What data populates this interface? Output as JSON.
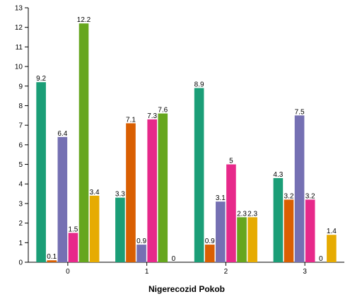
{
  "chart_data": {
    "type": "bar",
    "xlabel": "Nigerecozid Pokob",
    "ylabel": "",
    "ylim": [
      0,
      13
    ],
    "yticks": [
      0,
      1,
      2,
      3,
      4,
      5,
      6,
      7,
      8,
      9,
      10,
      11,
      12,
      13
    ],
    "categories": [
      "0",
      "1",
      "2",
      "3"
    ],
    "grid": false,
    "legend": "none",
    "series": [
      {
        "color": "#1b9e77",
        "values": [
          9.2,
          3.3,
          8.9,
          4.3
        ]
      },
      {
        "color": "#d95f02",
        "values": [
          0.1,
          7.1,
          0.9,
          3.2
        ]
      },
      {
        "color": "#7570b3",
        "values": [
          6.4,
          0.9,
          3.1,
          7.5
        ]
      },
      {
        "color": "#e7298a",
        "values": [
          1.5,
          7.3,
          5,
          3.2
        ]
      },
      {
        "color": "#66a61e",
        "values": [
          12.2,
          7.6,
          2.3,
          0
        ]
      },
      {
        "color": "#e6ab02",
        "values": [
          3.4,
          0,
          2.3,
          1.4
        ]
      }
    ]
  }
}
